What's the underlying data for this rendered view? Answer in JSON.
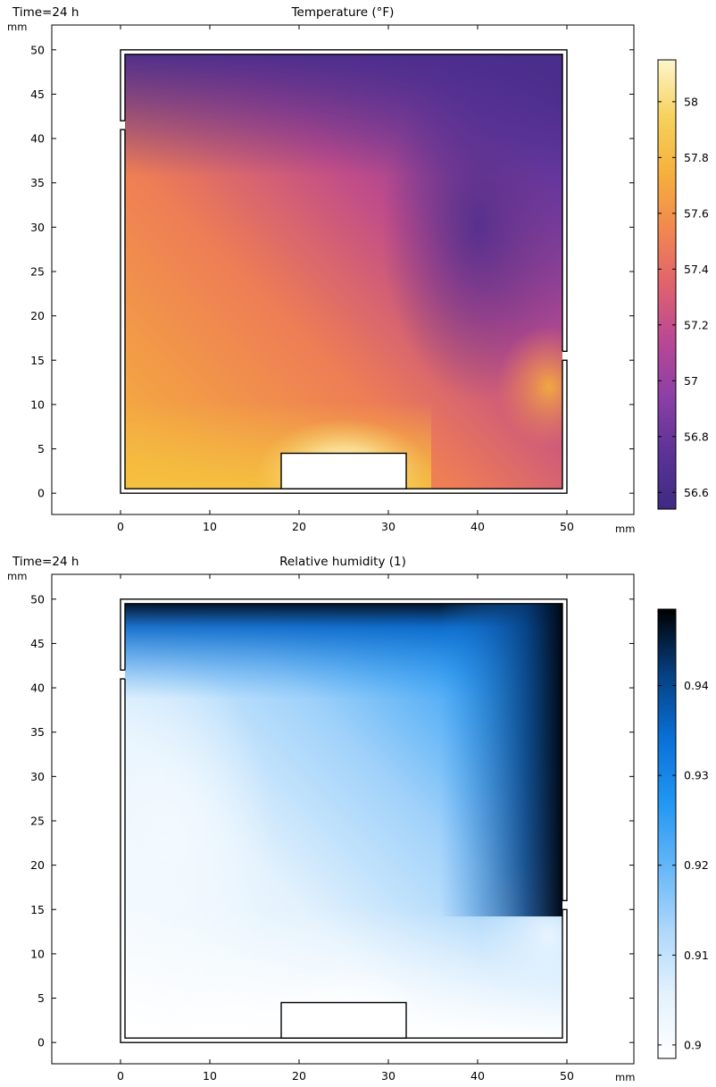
{
  "chart_data": [
    {
      "type": "heatmap",
      "time_label": "Time=24 h",
      "title": "Temperature (°F)",
      "xlabel": "mm",
      "ylabel": "mm",
      "xlim": [
        -7.7,
        57.5
      ],
      "ylim": [
        -2.4,
        52.8
      ],
      "xticks": [
        0,
        10,
        20,
        30,
        40,
        50
      ],
      "yticks": [
        0,
        5,
        10,
        15,
        20,
        25,
        30,
        35,
        40,
        45,
        50
      ],
      "grid": false,
      "colorbar": {
        "position": "right",
        "range": [
          56.54,
          58.15
        ],
        "ticks": [
          56.6,
          56.8,
          57,
          57.2,
          57.4,
          57.6,
          57.8,
          58
        ],
        "tick_labels": [
          "56.6",
          "56.8",
          "57",
          "57.2",
          "57.4",
          "57.6",
          "57.8",
          "58"
        ],
        "colors": [
          "#3f2a82",
          "#5b3396",
          "#8c3fa6",
          "#b94895",
          "#e0626d",
          "#f2884f",
          "#f5b13d",
          "#f6d25e",
          "#fdf6cc"
        ]
      }
    },
    {
      "type": "heatmap",
      "time_label": "Time=24 h",
      "title": "Relative humidity (1)",
      "xlabel": "mm",
      "ylabel": "mm",
      "xlim": [
        -7.7,
        57.5
      ],
      "ylim": [
        -2.4,
        52.8
      ],
      "xticks": [
        0,
        10,
        20,
        30,
        40,
        50
      ],
      "yticks": [
        0,
        5,
        10,
        15,
        20,
        25,
        30,
        35,
        40,
        45,
        50
      ],
      "grid": false,
      "colorbar": {
        "position": "right",
        "range": [
          0.8985,
          0.9485
        ],
        "ticks": [
          0.9,
          0.91,
          0.92,
          0.93,
          0.94
        ],
        "tick_labels": [
          "0.9",
          "0.91",
          "0.92",
          "0.93",
          "0.94"
        ],
        "colors": [
          "#ffffff",
          "#e3f2fd",
          "#aed7fb",
          "#64b6f7",
          "#2196f3",
          "#0a6fd6",
          "#063f80",
          "#000000"
        ]
      }
    }
  ]
}
